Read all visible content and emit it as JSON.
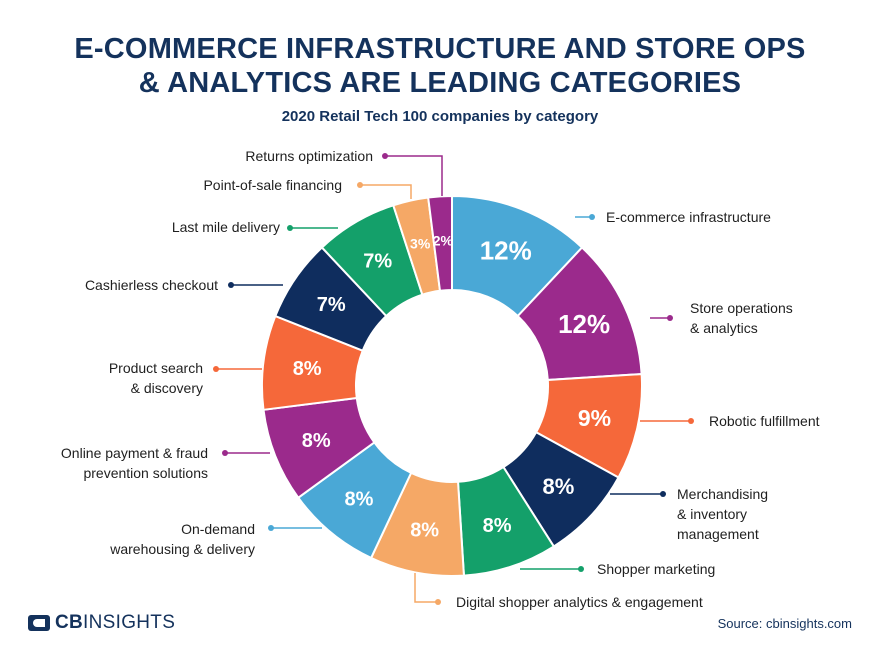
{
  "title": {
    "line1": "E-COMMERCE INFRASTRUCTURE AND STORE OPS",
    "line2": "& ANALYTICS ARE LEADING CATEGORIES"
  },
  "subtitle": "2020 Retail Tech 100 companies by category",
  "brand": {
    "cb": "CB",
    "insights": "INSIGHTS"
  },
  "source": "Source: cbinsights.com",
  "chart_data": {
    "type": "pie",
    "variant": "donut",
    "title": "2020 Retail Tech 100 companies by category",
    "unit": "%",
    "slices": [
      {
        "label": "E-commerce infrastructure",
        "value": 12,
        "display": "12%",
        "color": "#4aa8d6"
      },
      {
        "label": "Store operations & analytics",
        "lines": [
          "Store operations",
          "& analytics"
        ],
        "value": 12,
        "display": "12%",
        "color": "#9b2a8c"
      },
      {
        "label": "Robotic fulfillment",
        "value": 9,
        "display": "9%",
        "color": "#f5683a"
      },
      {
        "label": "Merchandising & inventory management",
        "lines": [
          "Merchandising",
          "& inventory",
          "management"
        ],
        "value": 8,
        "display": "8%",
        "color": "#0f2d5e"
      },
      {
        "label": "Shopper marketing",
        "value": 8,
        "display": "8%",
        "color": "#14a06a"
      },
      {
        "label": "Digital shopper analytics & engagement",
        "value": 8,
        "display": "8%",
        "color": "#f5a866"
      },
      {
        "label": "On-demand warehousing & delivery",
        "lines": [
          "On-demand",
          "warehousing & delivery"
        ],
        "value": 8,
        "display": "8%",
        "color": "#4aa8d6"
      },
      {
        "label": "Online payment & fraud prevention solutions",
        "lines": [
          "Online payment & fraud",
          "prevention solutions"
        ],
        "value": 8,
        "display": "8%",
        "color": "#9b2a8c"
      },
      {
        "label": "Product search & discovery",
        "lines": [
          "Product search",
          "& discovery"
        ],
        "value": 8,
        "display": "8%",
        "color": "#f5683a"
      },
      {
        "label": "Cashierless checkout",
        "value": 7,
        "display": "7%",
        "color": "#0f2d5e"
      },
      {
        "label": "Last mile delivery",
        "value": 7,
        "display": "7%",
        "color": "#14a06a"
      },
      {
        "label": "Point-of-sale financing",
        "value": 3,
        "display": "3%",
        "color": "#f5a866"
      },
      {
        "label": "Returns optimization",
        "value": 2,
        "display": "2%",
        "color": "#9b2a8c"
      }
    ]
  }
}
